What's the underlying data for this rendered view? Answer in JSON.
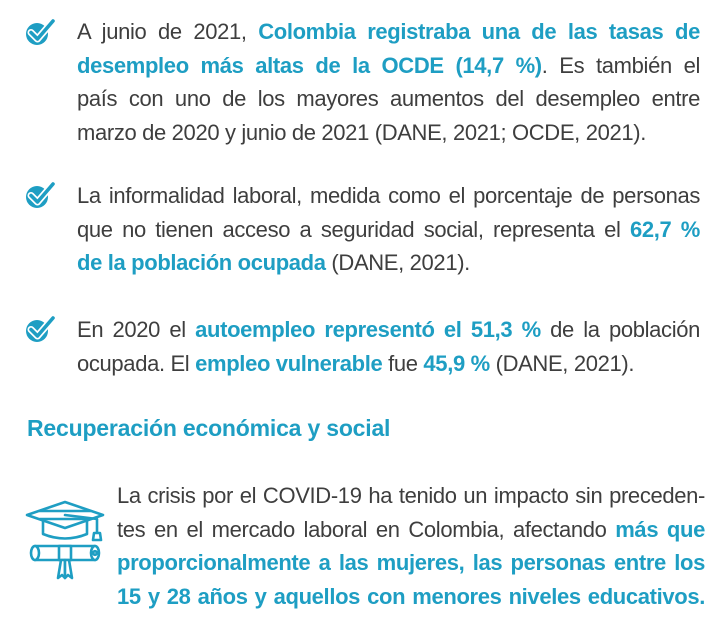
{
  "colors": {
    "accent": "#1e9ec3",
    "text": "#3e3e3e",
    "background": "#ffffff"
  },
  "bullets": [
    {
      "icon": "check-circle-icon",
      "lines": [
        [
          "A junio de 2021, ",
          "Colombia registraba una de las tasas de"
        ],
        [
          "desempleo más altas de la OCDE (14,7 %)",
          ". Es también el"
        ],
        [
          "país con uno de los mayores aumentos del desempleo entre"
        ],
        [
          "marzo de 2020 y junio de 2021 (DANE, 2021; OCDE, 2021)."
        ]
      ]
    },
    {
      "icon": "check-circle-icon",
      "lines": [
        [
          "La informalidad laboral, medida como el porcentaje de personas"
        ],
        [
          "que no tienen acceso a seguridad social, representa el ",
          "62,7 %"
        ],
        [
          "de la población ocupada",
          " (DANE, 2021)."
        ]
      ]
    },
    {
      "icon": "check-circle-icon",
      "lines": [
        [
          "En 2020 el ",
          "autoempleo representó el 51,3 %",
          " de la población"
        ],
        [
          "ocupada. El ",
          "empleo vulnerable",
          " fue ",
          "45,9 %",
          " (DANE, 2021)."
        ]
      ]
    }
  ],
  "section": {
    "heading": "Recuperación económica y social",
    "icon": "graduation-cap-icon",
    "lines": [
      [
        "La crisis por el COVID-19 ha tenido un impacto sin preceden-"
      ],
      [
        "tes en el mercado laboral en Colombia, afectando ",
        "más que"
      ],
      [
        "proporcionalmente a las mujeres, las personas entre los"
      ],
      [
        "15 y 28 años y aquellos con menores niveles educativos."
      ]
    ]
  }
}
